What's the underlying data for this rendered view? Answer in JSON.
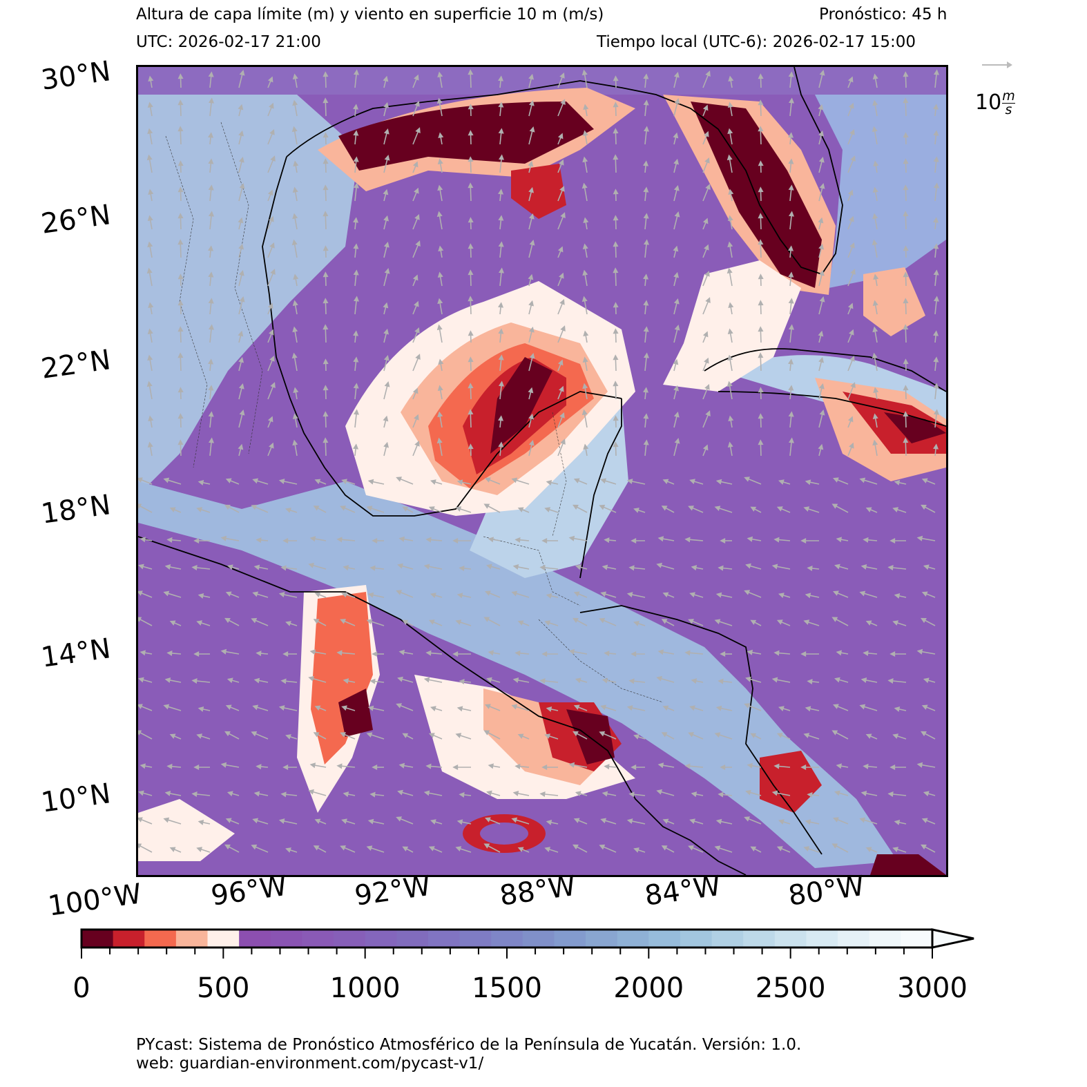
{
  "header": {
    "title": "Altura de capa límite (m) y viento en superficie 10 m (m/s)",
    "forecast": "Pronóstico: 45 h",
    "utc": "UTC:  2026-02-17 21:00",
    "local_time": "Tiempo local (UTC-6): 2026-02-17 15:00"
  },
  "map": {
    "latitude_labels": [
      "30°N",
      "26°N",
      "22°N",
      "18°N",
      "14°N",
      "10°N"
    ],
    "longitude_labels": [
      "100°W",
      "96°W",
      "92°W",
      "88°W",
      "84°W",
      "80°W"
    ],
    "extent": {
      "lon_min": -100,
      "lon_max": -77.5,
      "lat_min": 7.5,
      "lat_max": 30
    },
    "wind_reference": {
      "value": "10",
      "unit_num": "m",
      "unit_den": "s"
    }
  },
  "colorbar": {
    "tick_labels": [
      "0",
      "500",
      "1000",
      "1500",
      "2000",
      "2500",
      "3000"
    ],
    "range": [
      0,
      3000
    ],
    "extend": "max",
    "colors": [
      "#67001f",
      "#c8202c",
      "#f4694f",
      "#f9b59b",
      "#fff0ea",
      "#8c4fb0",
      "#8a54b3",
      "#8a5ab6",
      "#875fb8",
      "#8466bc",
      "#816cbd",
      "#8174c2",
      "#7f7cc4",
      "#7f86c7",
      "#8090c9",
      "#839bce",
      "#89a6d1",
      "#8fb1d6",
      "#97bcdb",
      "#a2c6df",
      "#b0d0e4",
      "#bdd9e9",
      "#cbe2ee",
      "#d8eaf3",
      "#e5f1f7",
      "#eff7fa",
      "#f7fbfd"
    ]
  },
  "footer": {
    "line1": "PYcast: Sistema de Pronóstico Atmosférico de la Península de Yucatán. Versión: 1.0.",
    "line2": "web: guardian-environment.com/pycast-v1/"
  }
}
